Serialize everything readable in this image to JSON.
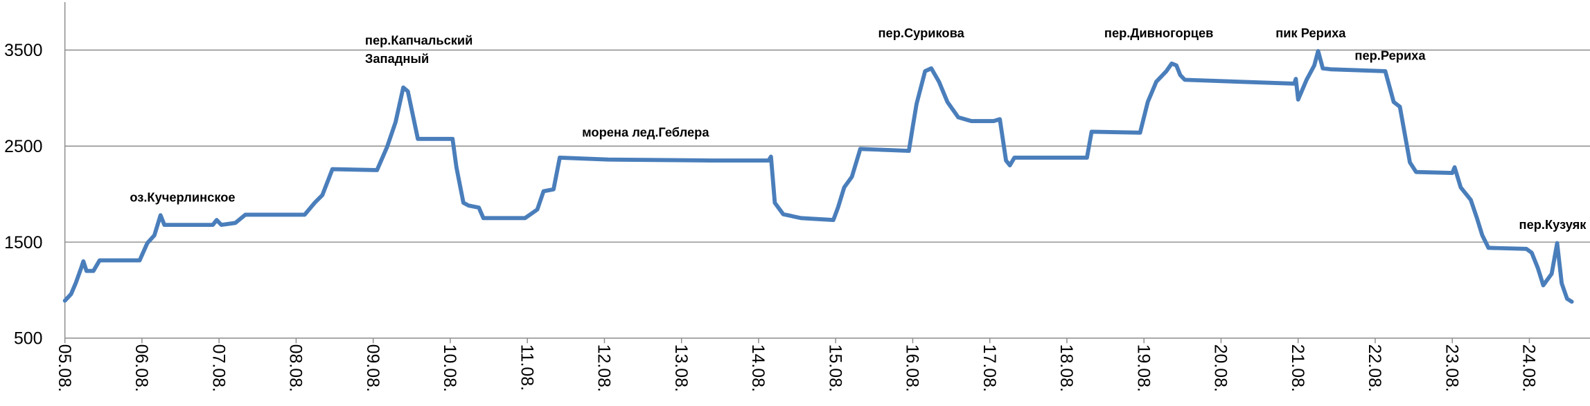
{
  "chart_data": {
    "type": "line",
    "annotations": [
      [
        "оз.Кучерлинское"
      ],
      [
        "пер.Капчальский",
        "Западный"
      ],
      [
        "морена лед.Геблера"
      ],
      [
        "пер.Сурикова"
      ],
      [
        "пер.Дивногорцев"
      ],
      [
        "пик Рериха"
      ],
      [
        "пер.Рериха"
      ],
      [
        "пер.Кузуяк"
      ]
    ],
    "x": [
      0,
      0.08,
      0.14,
      0.21,
      0.24,
      0.28,
      0.37,
      0.45,
      0.97,
      1.07,
      1.16,
      1.24,
      1.29,
      1.92,
      1.97,
      2.03,
      2.21,
      2.34,
      3.11,
      3.24,
      3.34,
      3.47,
      4.05,
      4.18,
      4.29,
      4.39,
      4.45,
      4.58,
      5.03,
      5.08,
      5.17,
      5.24,
      5.37,
      5.43,
      5.97,
      6.13,
      6.21,
      6.34,
      6.42,
      7.05,
      8.37,
      9.13,
      9.16,
      9.21,
      9.32,
      9.55,
      9.97,
      10.03,
      10.11,
      10.21,
      10.32,
      10.95,
      11,
      11.05,
      11.16,
      11.24,
      11.34,
      11.45,
      11.59,
      11.76,
      12.05,
      12.13,
      12.21,
      12.26,
      12.32,
      13.26,
      13.32,
      13.95,
      14.05,
      14.16,
      14.29,
      14.36,
      14.42,
      14.47,
      14.53,
      15.95,
      15.97,
      16,
      16.11,
      16.21,
      16.26,
      16.32,
      16.42,
      17.13,
      17.24,
      17.32,
      17.45,
      17.53,
      18,
      18.03,
      18.11,
      18.24,
      18.32,
      18.39,
      18.47,
      18.96,
      19.03,
      19.11,
      19.18,
      19.29,
      19.36,
      19.42,
      19.49,
      19.55
    ],
    "series": [
      {
        "color": "#4a7ebb",
        "values": [
          890,
          960,
          1070,
          1230,
          1300,
          1200,
          1200,
          1310,
          1310,
          1490,
          1570,
          1780,
          1680,
          1680,
          1730,
          1680,
          1700,
          1785,
          1785,
          1910,
          1990,
          2260,
          2250,
          2490,
          2750,
          3110,
          3070,
          2575,
          2575,
          2280,
          1910,
          1880,
          1860,
          1750,
          1750,
          1840,
          2030,
          2050,
          2380,
          2360,
          2350,
          2350,
          2390,
          1910,
          1790,
          1750,
          1730,
          1860,
          2070,
          2180,
          2470,
          2450,
          2700,
          2940,
          3280,
          3310,
          3170,
          2960,
          2800,
          2760,
          2760,
          2780,
          2350,
          2300,
          2380,
          2380,
          2650,
          2640,
          2960,
          3170,
          3280,
          3360,
          3340,
          3240,
          3190,
          3150,
          3200,
          2985,
          3190,
          3340,
          3490,
          3310,
          3300,
          3280,
          2960,
          2910,
          2330,
          2230,
          2220,
          2280,
          2070,
          1940,
          1750,
          1570,
          1440,
          1430,
          1390,
          1230,
          1050,
          1170,
          1490,
          1070,
          910,
          880
        ]
      }
    ],
    "xlim": [
      0,
      19.55
    ],
    "xticks": [
      {
        "value": 0,
        "label": "05.08."
      },
      {
        "value": 1,
        "label": "06.08."
      },
      {
        "value": 2,
        "label": "07.08."
      },
      {
        "value": 3,
        "label": "08.08."
      },
      {
        "value": 4,
        "label": "09.08."
      },
      {
        "value": 5,
        "label": "10.08."
      },
      {
        "value": 6,
        "label": "11.08."
      },
      {
        "value": 7,
        "label": "12.08."
      },
      {
        "value": 8,
        "label": "13.08."
      },
      {
        "value": 9,
        "label": "14.08."
      },
      {
        "value": 10,
        "label": "15.08."
      },
      {
        "value": 11,
        "label": "16.08."
      },
      {
        "value": 12,
        "label": "17.08."
      },
      {
        "value": 13,
        "label": "18.08."
      },
      {
        "value": 14,
        "label": "19.08."
      },
      {
        "value": 15,
        "label": "20.08."
      },
      {
        "value": 16,
        "label": "21.08."
      },
      {
        "value": 17,
        "label": "22.08."
      },
      {
        "value": 18,
        "label": "23.08."
      },
      {
        "value": 19,
        "label": "24.08."
      }
    ],
    "ylim": [
      500,
      4000
    ],
    "yticks": [
      500,
      1500,
      2500,
      3500
    ],
    "grid": true
  }
}
